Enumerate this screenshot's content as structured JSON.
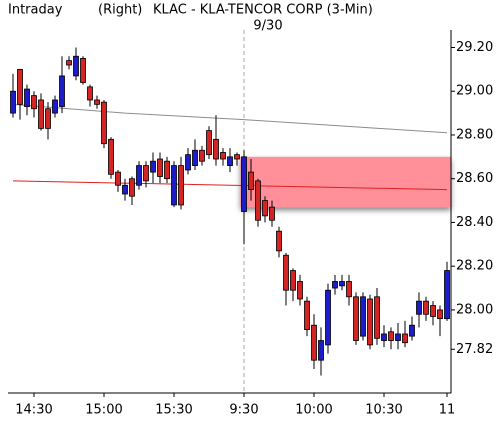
{
  "chart_data": {
    "type": "candlestick",
    "title": "KLAC - KLA-TENCOR CORP (3-Min)",
    "period_label": "Intraday",
    "axis_side": "(Right)",
    "date_label": "9/30",
    "categories": [
      null,
      null,
      null,
      "14:30",
      null,
      null,
      null,
      null,
      null,
      null,
      null,
      null,
      null,
      "15:00",
      null,
      null,
      null,
      null,
      null,
      null,
      null,
      null,
      null,
      "15:30",
      null,
      null,
      null,
      null,
      null,
      null,
      null,
      null,
      null,
      "9:30",
      null,
      null,
      null,
      null,
      null,
      null,
      null,
      null,
      null,
      "10:00",
      null,
      null,
      null,
      null,
      null,
      null,
      null,
      null,
      null,
      "10:30",
      null,
      null,
      null,
      null,
      null,
      null,
      null,
      null,
      "11"
    ],
    "open": [
      28.9,
      29.1,
      28.93,
      28.98,
      28.96,
      28.92,
      28.9,
      28.93,
      29.14,
      29.07,
      29.15,
      29.02,
      28.96,
      28.95,
      28.78,
      28.63,
      28.53,
      28.6,
      28.57,
      28.66,
      28.63,
      28.69,
      28.68,
      28.48,
      28.66,
      28.64,
      28.66,
      28.73,
      28.82,
      28.78,
      28.72,
      28.66,
      28.71,
      28.45,
      28.63,
      28.59,
      28.5,
      28.47,
      28.36,
      28.25,
      28.18,
      28.13,
      28.04,
      27.93,
      27.77,
      27.84,
      28.1,
      28.11,
      28.13,
      28.06,
      27.88,
      28.05,
      28.06,
      27.86,
      27.9,
      27.86,
      27.89,
      27.88,
      27.98,
      28.04,
      28.02,
      28.0,
      27.96
    ],
    "high": [
      29.08,
      29.1,
      29.03,
      29.0,
      28.99,
      28.95,
      28.98,
      29.16,
      29.16,
      29.2,
      29.16,
      29.03,
      28.98,
      28.96,
      28.79,
      28.64,
      28.6,
      28.61,
      28.68,
      28.68,
      28.72,
      28.72,
      28.7,
      28.68,
      28.7,
      28.74,
      28.78,
      28.75,
      28.84,
      28.89,
      28.74,
      28.74,
      28.72,
      28.73,
      28.69,
      28.6,
      28.52,
      28.5,
      28.38,
      28.26,
      28.19,
      28.16,
      28.06,
      27.98,
      27.92,
      28.12,
      28.16,
      28.16,
      28.16,
      28.08,
      28.08,
      28.07,
      28.1,
      27.93,
      27.92,
      27.94,
      27.95,
      27.97,
      28.08,
      28.06,
      28.04,
      28.02,
      28.22
    ],
    "low": [
      28.88,
      28.87,
      28.89,
      28.88,
      28.82,
      28.78,
      28.88,
      28.9,
      29.1,
      29.05,
      29.03,
      28.93,
      28.92,
      28.74,
      28.6,
      28.54,
      28.5,
      28.48,
      28.55,
      28.56,
      28.58,
      28.58,
      28.58,
      28.47,
      28.46,
      28.62,
      28.64,
      28.66,
      28.69,
      28.66,
      28.66,
      28.63,
      28.66,
      28.3,
      28.5,
      28.38,
      28.4,
      28.38,
      28.24,
      28.02,
      28.04,
      28.02,
      27.88,
      27.73,
      27.7,
      27.8,
      28.07,
      28.09,
      28.02,
      27.84,
      27.86,
      27.82,
      27.84,
      27.83,
      27.82,
      27.82,
      27.83,
      27.86,
      27.92,
      27.95,
      27.93,
      27.88,
      27.95
    ],
    "close": [
      29.0,
      28.94,
      29.01,
      28.92,
      28.83,
      28.83,
      28.96,
      29.07,
      29.12,
      29.16,
      29.04,
      28.96,
      28.94,
      28.76,
      28.62,
      28.57,
      28.57,
      28.52,
      28.66,
      28.59,
      28.68,
      28.61,
      28.6,
      28.66,
      28.48,
      28.71,
      28.73,
      28.68,
      28.71,
      28.69,
      28.69,
      28.7,
      28.69,
      28.7,
      28.55,
      28.41,
      28.43,
      28.41,
      28.27,
      28.09,
      28.09,
      28.05,
      27.91,
      27.77,
      27.86,
      28.09,
      28.13,
      28.13,
      28.06,
      27.86,
      28.06,
      27.84,
      27.87,
      27.89,
      27.86,
      27.89,
      27.85,
      27.93,
      28.04,
      27.98,
      27.97,
      27.96,
      28.18
    ],
    "up_color": "#1c1cc8",
    "down_color": "#d42424",
    "lines": [
      {
        "color": "#8c8c8c",
        "x": [
          0,
          16,
          33,
          62
        ],
        "values": [
          28.94,
          28.9,
          28.87,
          28.81
        ]
      },
      {
        "color": "#e02020",
        "x": [
          0,
          62
        ],
        "values": [
          28.59,
          28.55
        ]
      }
    ],
    "zone": {
      "x": [
        33,
        62
      ],
      "y": [
        28.47,
        28.7
      ],
      "color": "#ff8f99"
    },
    "ylim": [
      27.62,
      29.28
    ],
    "yticks": [
      {
        "value": 29.2,
        "label": "29.20"
      },
      {
        "value": 29.0,
        "label": "29.00"
      },
      {
        "value": 28.8,
        "label": "28.80"
      },
      {
        "value": 28.6,
        "label": "28.60"
      },
      {
        "value": 28.4,
        "label": "28.40"
      },
      {
        "value": 28.2,
        "label": "28.20"
      },
      {
        "value": 28.0,
        "label": "28.00"
      },
      27.82
    ]
  }
}
